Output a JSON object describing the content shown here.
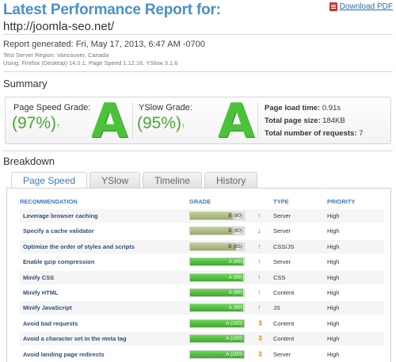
{
  "header": {
    "title": "Latest Performance Report for:",
    "url": "http://joomla-seo.net/",
    "pdf_label": "Download PDF"
  },
  "meta": {
    "generated": "Report generated: Fri, May 17, 2013, 6:47 AM -0700",
    "region": "Test Server Region: Vancouver, Canada",
    "using": "Using: Firefox (Desktop) 14.0.1, Page Speed 1.12.16, YSlow 3.1.6"
  },
  "summary": {
    "heading": "Summary",
    "pagespeed_label": "Page Speed Grade:",
    "pagespeed_value": "(97%)",
    "pagespeed_letter": "A",
    "yslow_label": "YSlow Grade:",
    "yslow_value": "(95%)",
    "yslow_letter": "A",
    "load_time_label": "Page load time:",
    "load_time_value": "0.91s",
    "page_size_label": "Total page size:",
    "page_size_value": "184KB",
    "requests_label": "Total number of requests:",
    "requests_value": "7",
    "up_arrow": "↑",
    "grade_color": "#44aa2e"
  },
  "breakdown": {
    "heading": "Breakdown",
    "tabs": [
      "Page Speed",
      "YSlow",
      "Timeline",
      "History"
    ],
    "columns": {
      "recommendation": "RECOMMENDATION",
      "grade": "GRADE",
      "type": "TYPE",
      "priority": "PRIORITY"
    },
    "rows": [
      {
        "rec": "Leverage browser caching",
        "grade": "B (80)",
        "fraction": 0.8,
        "arrow": "↑",
        "arrow_color": "#44aa2e",
        "type": "Server",
        "priority": "High"
      },
      {
        "rec": "Specify a cache validator",
        "grade": "B (80)",
        "fraction": 0.8,
        "arrow": "↓",
        "arrow_color": "#cc3322",
        "type": "Server",
        "priority": "High"
      },
      {
        "rec": "Optimize the order of styles and scripts",
        "grade": "B (85)",
        "fraction": 0.85,
        "arrow": "↑",
        "arrow_color": "#44aa2e",
        "type": "CSS/JS",
        "priority": "High"
      },
      {
        "rec": "Enable gzip compression",
        "grade": "A (99)",
        "fraction": 0.99,
        "arrow": "↑",
        "arrow_color": "#44aa2e",
        "type": "Server",
        "priority": "High"
      },
      {
        "rec": "Minify CSS",
        "grade": "A (99)",
        "fraction": 0.99,
        "arrow": "↑",
        "arrow_color": "#44aa2e",
        "type": "CSS",
        "priority": "High"
      },
      {
        "rec": "Minify HTML",
        "grade": "A (99)",
        "fraction": 0.99,
        "arrow": "↑",
        "arrow_color": "#44aa2e",
        "type": "Content",
        "priority": "High"
      },
      {
        "rec": "Minify JavaScript",
        "grade": "A (99)",
        "fraction": 0.99,
        "arrow": "↑",
        "arrow_color": "#44aa2e",
        "type": "JS",
        "priority": "High"
      },
      {
        "rec": "Avoid bad requests",
        "grade": "A (100)",
        "fraction": 1.0,
        "arrow": "⇕",
        "arrow_color": "#e8a020",
        "type": "Content",
        "priority": "High"
      },
      {
        "rec": "Avoid a character set in the meta tag",
        "grade": "A (100)",
        "fraction": 1.0,
        "arrow": "⇕",
        "arrow_color": "#e8a020",
        "type": "Content",
        "priority": "High"
      },
      {
        "rec": "Avoid landing page redirects",
        "grade": "A (100)",
        "fraction": 1.0,
        "arrow": "⇕",
        "arrow_color": "#e8a020",
        "type": "Server",
        "priority": "High"
      }
    ]
  }
}
